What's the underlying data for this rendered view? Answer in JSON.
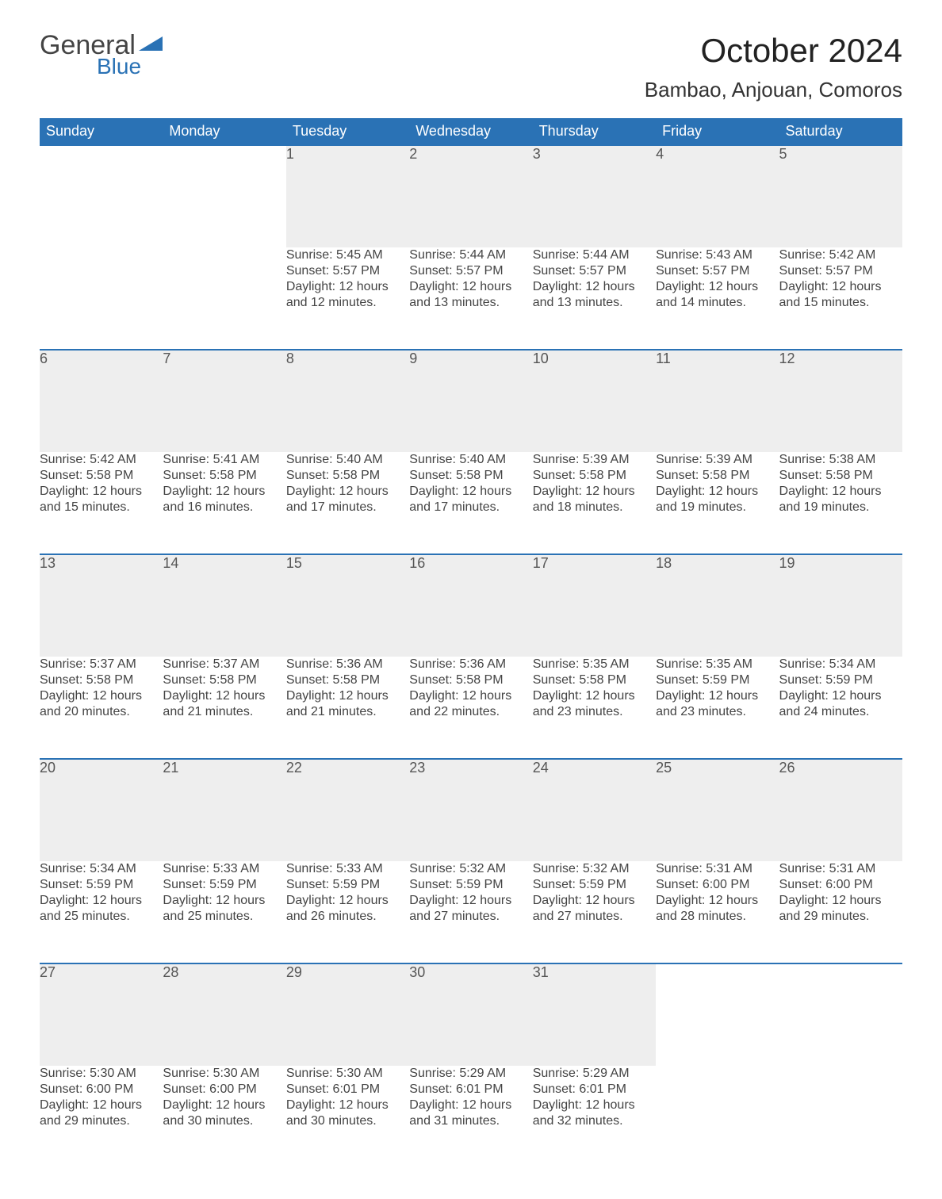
{
  "logo": {
    "general": "General",
    "blue": "Blue"
  },
  "header": {
    "title": "October 2024",
    "location": "Bambao, Anjouan, Comoros"
  },
  "colors": {
    "header_bg": "#2a72b5",
    "header_text": "#ffffff",
    "daynum_bg": "#eeeeee",
    "border_top": "#2a72b5",
    "body_bg": "#ffffff",
    "text": "#444444"
  },
  "calendar": {
    "day_names": [
      "Sunday",
      "Monday",
      "Tuesday",
      "Wednesday",
      "Thursday",
      "Friday",
      "Saturday"
    ],
    "weeks": [
      [
        null,
        null,
        {
          "n": "1",
          "sunrise": "5:45 AM",
          "sunset": "5:57 PM",
          "dl": "12 hours and 12 minutes."
        },
        {
          "n": "2",
          "sunrise": "5:44 AM",
          "sunset": "5:57 PM",
          "dl": "12 hours and 13 minutes."
        },
        {
          "n": "3",
          "sunrise": "5:44 AM",
          "sunset": "5:57 PM",
          "dl": "12 hours and 13 minutes."
        },
        {
          "n": "4",
          "sunrise": "5:43 AM",
          "sunset": "5:57 PM",
          "dl": "12 hours and 14 minutes."
        },
        {
          "n": "5",
          "sunrise": "5:42 AM",
          "sunset": "5:57 PM",
          "dl": "12 hours and 15 minutes."
        }
      ],
      [
        {
          "n": "6",
          "sunrise": "5:42 AM",
          "sunset": "5:58 PM",
          "dl": "12 hours and 15 minutes."
        },
        {
          "n": "7",
          "sunrise": "5:41 AM",
          "sunset": "5:58 PM",
          "dl": "12 hours and 16 minutes."
        },
        {
          "n": "8",
          "sunrise": "5:40 AM",
          "sunset": "5:58 PM",
          "dl": "12 hours and 17 minutes."
        },
        {
          "n": "9",
          "sunrise": "5:40 AM",
          "sunset": "5:58 PM",
          "dl": "12 hours and 17 minutes."
        },
        {
          "n": "10",
          "sunrise": "5:39 AM",
          "sunset": "5:58 PM",
          "dl": "12 hours and 18 minutes."
        },
        {
          "n": "11",
          "sunrise": "5:39 AM",
          "sunset": "5:58 PM",
          "dl": "12 hours and 19 minutes."
        },
        {
          "n": "12",
          "sunrise": "5:38 AM",
          "sunset": "5:58 PM",
          "dl": "12 hours and 19 minutes."
        }
      ],
      [
        {
          "n": "13",
          "sunrise": "5:37 AM",
          "sunset": "5:58 PM",
          "dl": "12 hours and 20 minutes."
        },
        {
          "n": "14",
          "sunrise": "5:37 AM",
          "sunset": "5:58 PM",
          "dl": "12 hours and 21 minutes."
        },
        {
          "n": "15",
          "sunrise": "5:36 AM",
          "sunset": "5:58 PM",
          "dl": "12 hours and 21 minutes."
        },
        {
          "n": "16",
          "sunrise": "5:36 AM",
          "sunset": "5:58 PM",
          "dl": "12 hours and 22 minutes."
        },
        {
          "n": "17",
          "sunrise": "5:35 AM",
          "sunset": "5:58 PM",
          "dl": "12 hours and 23 minutes."
        },
        {
          "n": "18",
          "sunrise": "5:35 AM",
          "sunset": "5:59 PM",
          "dl": "12 hours and 23 minutes."
        },
        {
          "n": "19",
          "sunrise": "5:34 AM",
          "sunset": "5:59 PM",
          "dl": "12 hours and 24 minutes."
        }
      ],
      [
        {
          "n": "20",
          "sunrise": "5:34 AM",
          "sunset": "5:59 PM",
          "dl": "12 hours and 25 minutes."
        },
        {
          "n": "21",
          "sunrise": "5:33 AM",
          "sunset": "5:59 PM",
          "dl": "12 hours and 25 minutes."
        },
        {
          "n": "22",
          "sunrise": "5:33 AM",
          "sunset": "5:59 PM",
          "dl": "12 hours and 26 minutes."
        },
        {
          "n": "23",
          "sunrise": "5:32 AM",
          "sunset": "5:59 PM",
          "dl": "12 hours and 27 minutes."
        },
        {
          "n": "24",
          "sunrise": "5:32 AM",
          "sunset": "5:59 PM",
          "dl": "12 hours and 27 minutes."
        },
        {
          "n": "25",
          "sunrise": "5:31 AM",
          "sunset": "6:00 PM",
          "dl": "12 hours and 28 minutes."
        },
        {
          "n": "26",
          "sunrise": "5:31 AM",
          "sunset": "6:00 PM",
          "dl": "12 hours and 29 minutes."
        }
      ],
      [
        {
          "n": "27",
          "sunrise": "5:30 AM",
          "sunset": "6:00 PM",
          "dl": "12 hours and 29 minutes."
        },
        {
          "n": "28",
          "sunrise": "5:30 AM",
          "sunset": "6:00 PM",
          "dl": "12 hours and 30 minutes."
        },
        {
          "n": "29",
          "sunrise": "5:30 AM",
          "sunset": "6:01 PM",
          "dl": "12 hours and 30 minutes."
        },
        {
          "n": "30",
          "sunrise": "5:29 AM",
          "sunset": "6:01 PM",
          "dl": "12 hours and 31 minutes."
        },
        {
          "n": "31",
          "sunrise": "5:29 AM",
          "sunset": "6:01 PM",
          "dl": "12 hours and 32 minutes."
        },
        null,
        null
      ]
    ],
    "labels": {
      "sunrise": "Sunrise: ",
      "sunset": "Sunset: ",
      "daylight": "Daylight: "
    }
  }
}
